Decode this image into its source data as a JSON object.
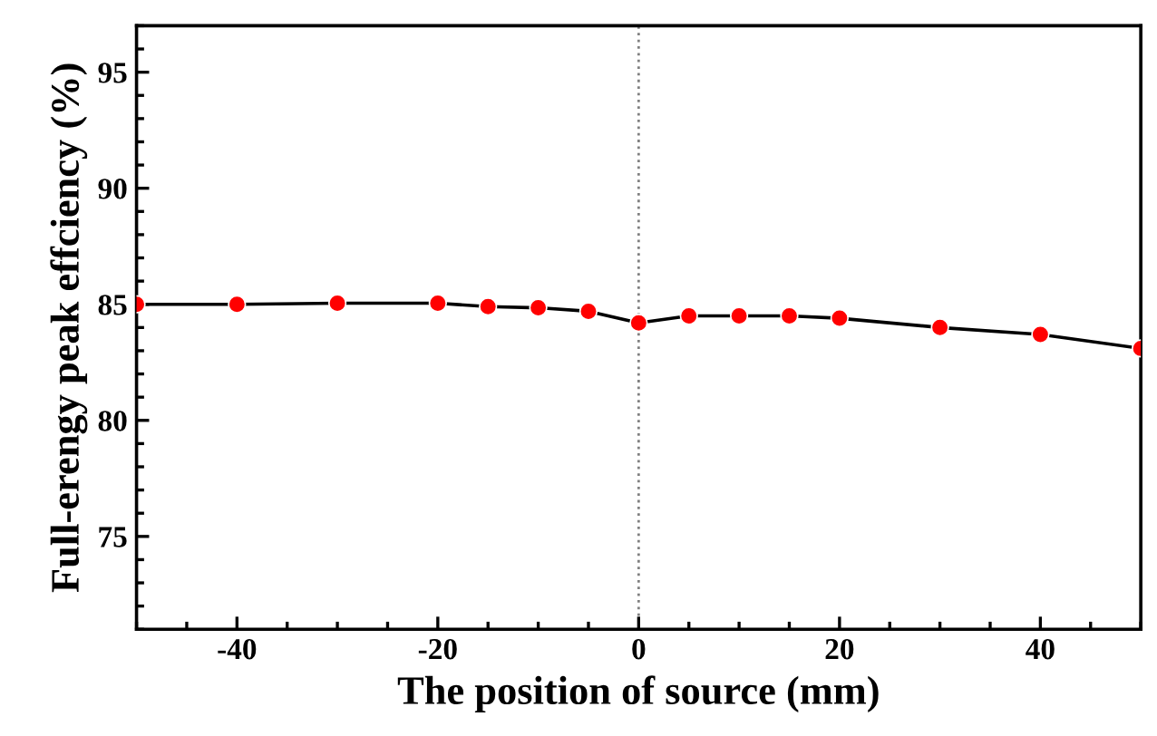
{
  "chart_data": {
    "type": "line",
    "xlabel": "The position of source (mm)",
    "ylabel": "Full-erengy peak effciency (%)",
    "x": [
      -50,
      -40,
      -30,
      -20,
      -15,
      -10,
      -5,
      0,
      5,
      10,
      15,
      20,
      30,
      40,
      50
    ],
    "series": [
      {
        "color": "#ff0000",
        "values": [
          85.0,
          85.0,
          85.05,
          85.05,
          84.9,
          84.85,
          84.7,
          84.2,
          84.5,
          84.5,
          84.5,
          84.4,
          84.0,
          83.7,
          83.1
        ]
      }
    ],
    "xlim": [
      -50,
      50
    ],
    "xticks": [
      -40,
      -20,
      0,
      20,
      40
    ],
    "ylim": [
      71,
      97
    ],
    "yticks": [
      75,
      80,
      85,
      90,
      95
    ],
    "marker": "circle",
    "line_style": "solid",
    "grid": false,
    "legend": false,
    "ref_lines": [
      {
        "axis": "x",
        "value": 0,
        "color": "#808080",
        "line_style": "dotted"
      }
    ]
  }
}
